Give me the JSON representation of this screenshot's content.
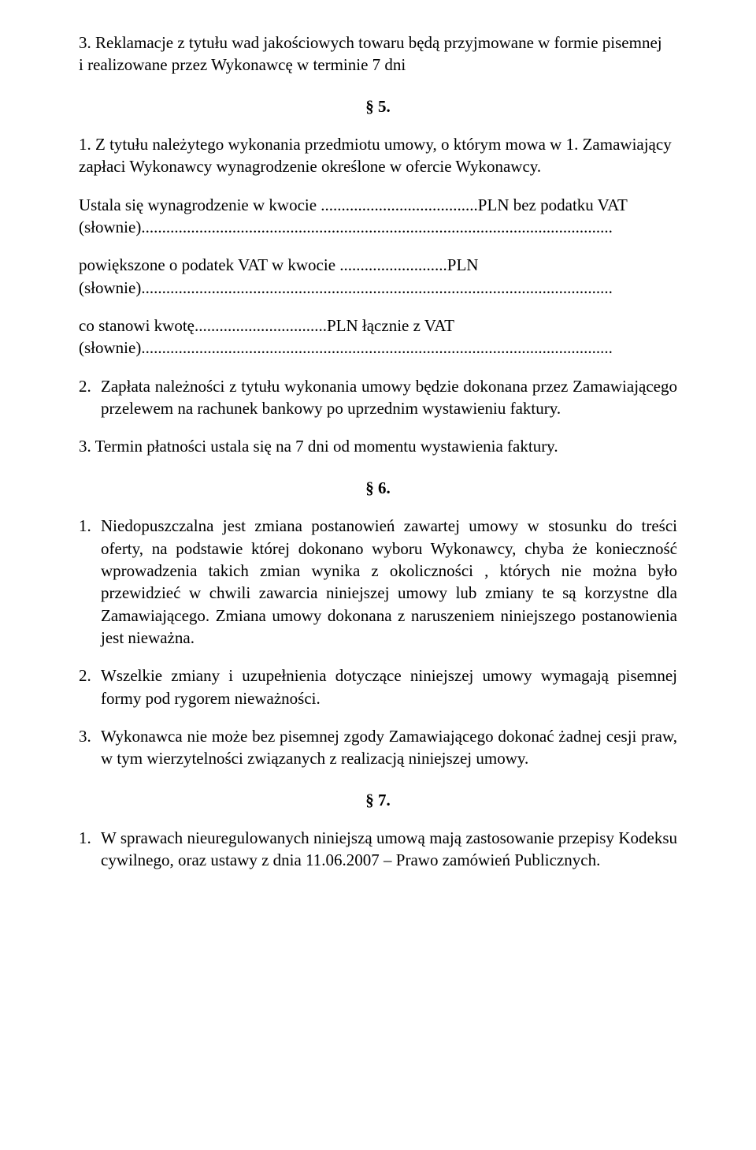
{
  "p_top": "3. Reklamacje z tytułu wad jakościowych towaru będą przyjmowane w formie pisemnej",
  "p_top2": "i realizowane przez Wykonawcę w terminie 7 dni",
  "s5_heading": "§ 5.",
  "s5_1": "1. Z tytułu należytego wykonania przedmiotu umowy, o którym mowa w 1. Zamawiający zapłaci Wykonawcy wynagrodzenie określone w ofercie Wykonawcy.",
  "s5_ust1": "Ustala się wynagrodzenie w kwocie ......................................PLN bez podatku VAT",
  "s5_slownie1": "(słownie)..................................................................................................................",
  "s5_pow": "powiększone o podatek VAT w kwocie ..........................PLN",
  "s5_slownie2": "(słownie)..................................................................................................................",
  "s5_co": "co stanowi kwotę................................PLN łącznie z VAT",
  "s5_slownie3": "(słownie)..................................................................................................................",
  "s5_2_num": "2.",
  "s5_2_txt": "Zapłata należności z tytułu wykonania umowy będzie dokonana przez Zamawiającego przelewem na rachunek bankowy po uprzednim wystawieniu faktury.",
  "s5_3": "3. Termin płatności ustala się na 7 dni od momentu wystawienia faktury.",
  "s6_heading": "§ 6.",
  "s6_1_num": "1.",
  "s6_1_txt": "Niedopuszczalna jest zmiana postanowień zawartej umowy w stosunku do treści oferty, na podstawie której dokonano wyboru Wykonawcy, chyba że konieczność wprowadzenia takich zmian wynika z okoliczności , których nie można było przewidzieć w chwili zawarcia niniejszej umowy lub zmiany te są korzystne dla Zamawiającego. Zmiana umowy dokonana z naruszeniem niniejszego postanowienia jest nieważna.",
  "s6_2_num": "2.",
  "s6_2_txt": "Wszelkie zmiany i uzupełnienia dotyczące niniejszej umowy wymagają pisemnej formy pod rygorem nieważności.",
  "s6_3_num": "3.",
  "s6_3_txt": "Wykonawca nie może bez pisemnej zgody Zamawiającego dokonać żadnej cesji praw, w tym wierzytelności związanych z realizacją niniejszej umowy.",
  "s7_heading": "§ 7.",
  "s7_1_num": "1.",
  "s7_1_txt": "W sprawach nieuregulowanych niniejszą umową mają zastosowanie przepisy Kodeksu cywilnego, oraz ustawy z dnia 11.06.2007 – Prawo zamówień Publicznych."
}
